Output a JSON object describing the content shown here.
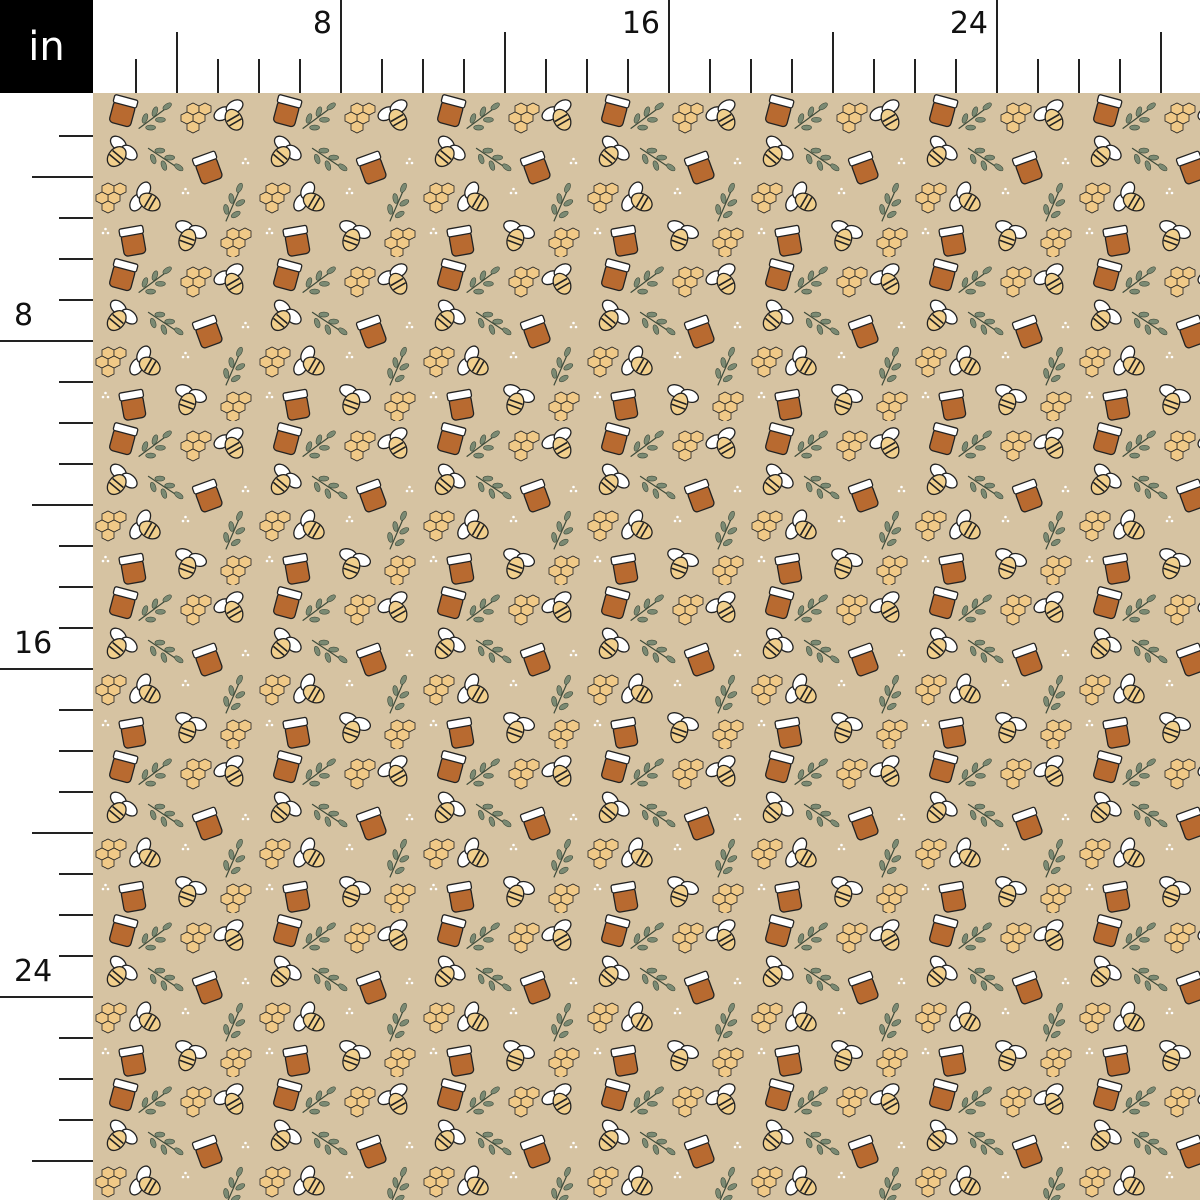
{
  "ruler": {
    "unit": "in",
    "top_labels": [
      "8",
      "16",
      "24"
    ],
    "left_labels": [
      "8",
      "16",
      "24"
    ]
  },
  "fabric": {
    "motifs": [
      "bee-icon",
      "honey-jar-icon",
      "honeycomb-icon",
      "leaf-sprig-icon",
      "dots-icon"
    ],
    "colors": {
      "background": "#d6c3a2",
      "honey": "#b86a30",
      "bee_body": "#f1cf8c",
      "leaf": "#7b8a73",
      "outline": "#222222",
      "white": "#ffffff"
    }
  }
}
